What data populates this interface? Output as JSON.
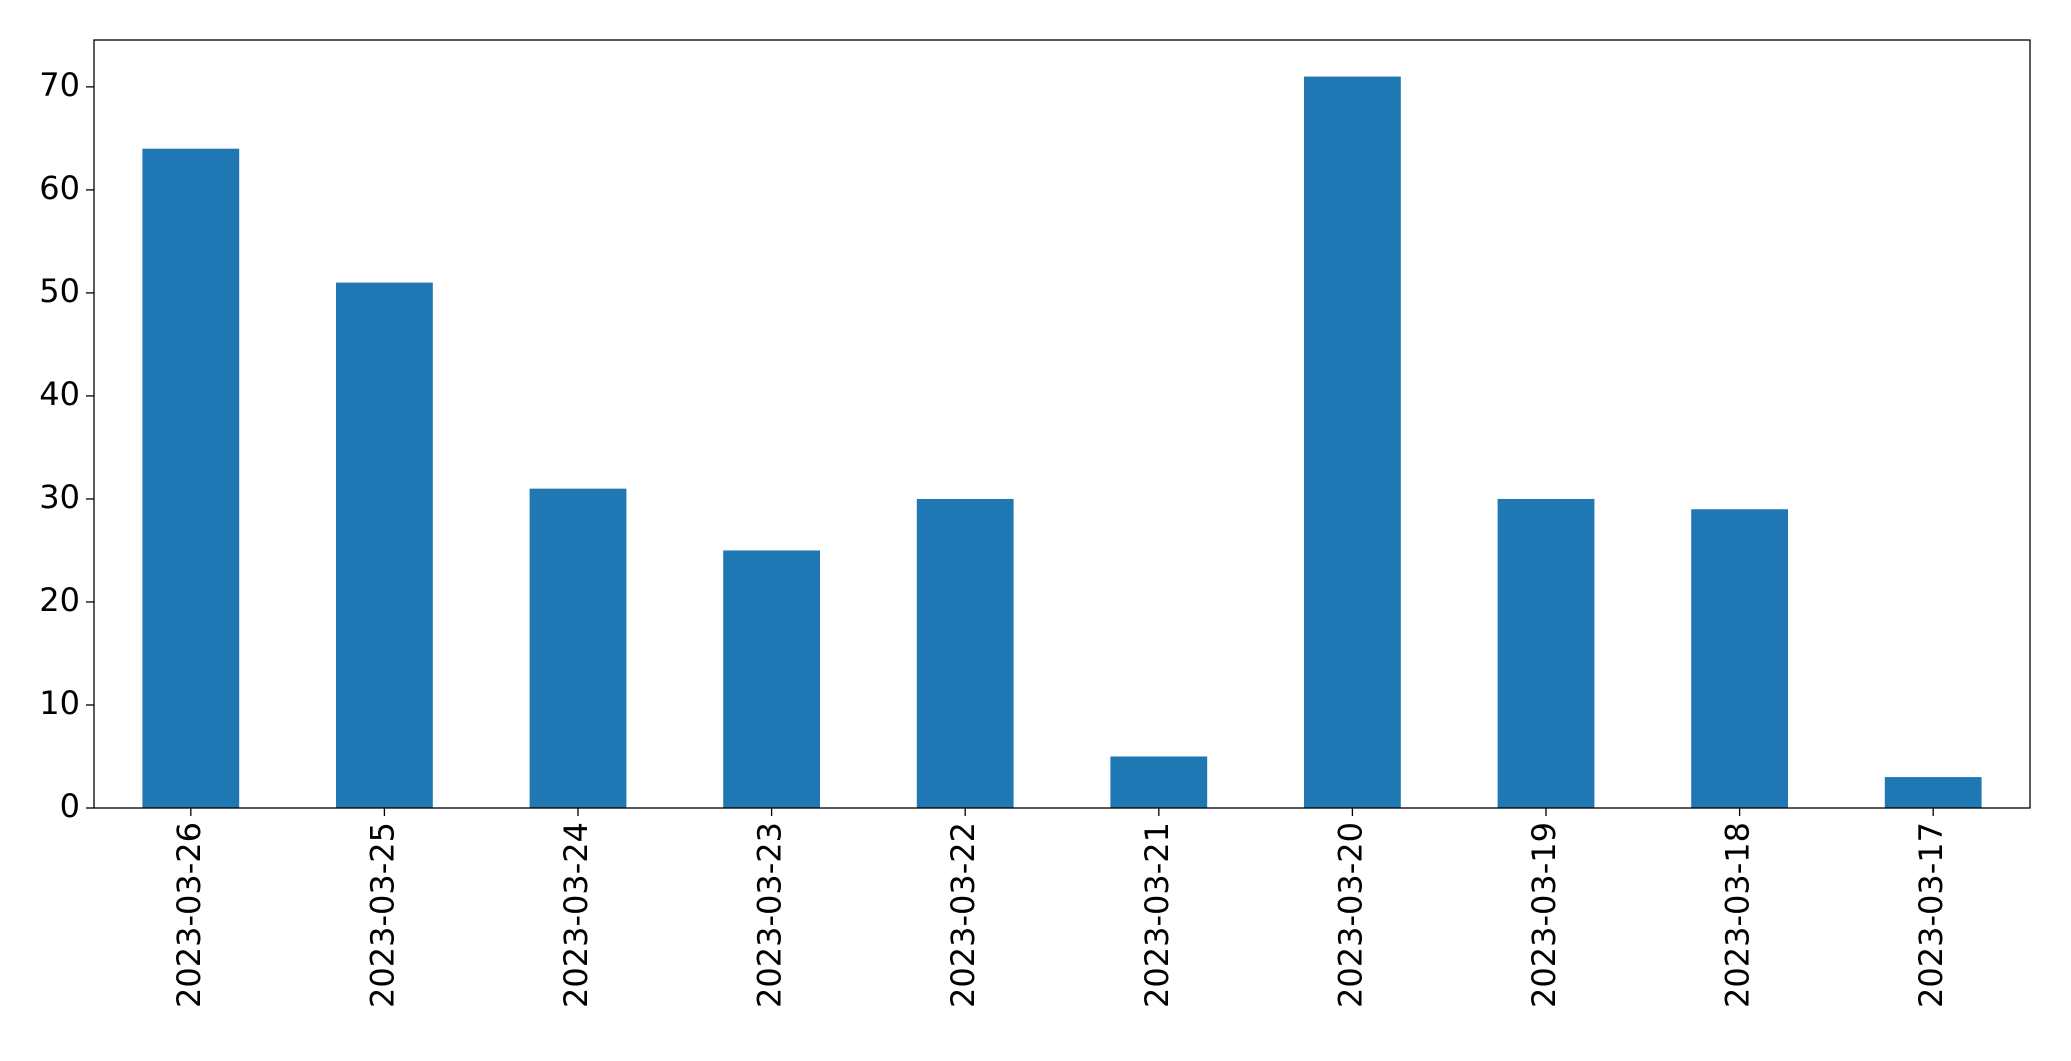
{
  "chart_data": {
    "type": "bar",
    "categories": [
      "2023-03-26",
      "2023-03-25",
      "2023-03-24",
      "2023-03-23",
      "2023-03-22",
      "2023-03-21",
      "2023-03-20",
      "2023-03-19",
      "2023-03-18",
      "2023-03-17"
    ],
    "values": [
      64,
      51,
      31,
      25,
      30,
      5,
      71,
      30,
      29,
      3
    ],
    "color": "#1f77b4",
    "ylim": [
      0,
      74.55
    ],
    "yticks": [
      0,
      10,
      20,
      30,
      40,
      50,
      60,
      70
    ],
    "grid": false
  }
}
